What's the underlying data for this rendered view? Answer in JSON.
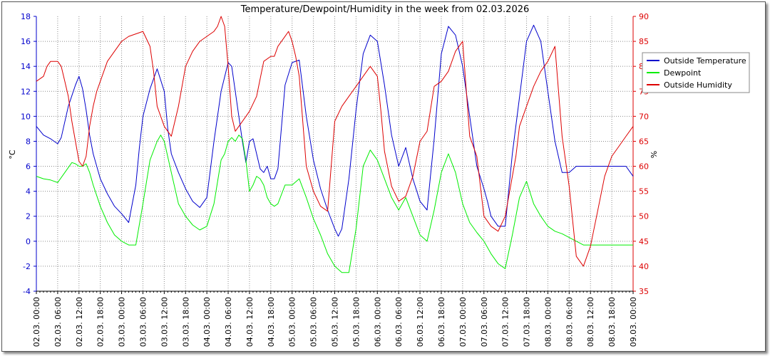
{
  "chart_data": {
    "type": "line",
    "title": "Temperature/Dewpoint/Humidity in the week from 02.03.2026",
    "ylabel_left": "°C",
    "ylabel_right": "%",
    "ylim_left": [
      -4,
      18
    ],
    "ylim_right": [
      35,
      90
    ],
    "yticks_left": [
      "-4",
      "-2",
      "0",
      "2",
      "4",
      "6",
      "8",
      "10",
      "12",
      "14",
      "16",
      "18"
    ],
    "yticks_right": [
      "35",
      "40",
      "45",
      "50",
      "55",
      "60",
      "65",
      "70",
      "75",
      "80",
      "85",
      "90"
    ],
    "xticks": [
      "02.03. 00:00",
      "02.03. 06:00",
      "02.03. 12:00",
      "02.03. 18:00",
      "03.03. 00:00",
      "03.03. 06:00",
      "03.03. 12:00",
      "03.03. 18:00",
      "04.03. 00:00",
      "04.03. 06:00",
      "04.03. 12:00",
      "04.03. 18:00",
      "05.03. 00:00",
      "05.03. 06:00",
      "05.03. 12:00",
      "05.03. 18:00",
      "06.03. 00:00",
      "06.03. 06:00",
      "06.03. 12:00",
      "06.03. 18:00",
      "07.03. 00:00",
      "07.03. 06:00",
      "07.03. 12:00",
      "07.03. 18:00",
      "08.03. 00:00",
      "08.03. 06:00",
      "08.03. 12:00",
      "08.03. 18:00",
      "09.03. 00:00"
    ],
    "x_hours_range": [
      0,
      168
    ],
    "legend_position": "top-right",
    "grid": true,
    "series": [
      {
        "name": "Outside Temperature",
        "color": "#0000cc",
        "axis": "left",
        "x": [
          0,
          2,
          4,
          6,
          7,
          9,
          11,
          12,
          13,
          14,
          15,
          16,
          18,
          20,
          22,
          24,
          26,
          28,
          29,
          30,
          32,
          34,
          36,
          37,
          38,
          40,
          42,
          44,
          46,
          48,
          50,
          52,
          54,
          55,
          56,
          57,
          58,
          59,
          60,
          61,
          62,
          63,
          64,
          65,
          66,
          67,
          68,
          70,
          72,
          74,
          76,
          78,
          80,
          82,
          84,
          85,
          86,
          88,
          90,
          92,
          94,
          96,
          98,
          100,
          102,
          104,
          106,
          108,
          110,
          112,
          114,
          116,
          118,
          120,
          122,
          124,
          126,
          127,
          128,
          130,
          132,
          134,
          136,
          138,
          140,
          142,
          144,
          146,
          148,
          150,
          152,
          154,
          156,
          158,
          160,
          162,
          164,
          166,
          168
        ],
        "y": [
          9.2,
          8.5,
          8.2,
          7.8,
          8.3,
          10.8,
          12.5,
          13.2,
          12.2,
          10.5,
          8.5,
          7,
          5,
          3.8,
          2.8,
          2.2,
          1.5,
          4.5,
          7.5,
          10,
          12.2,
          13.8,
          12,
          9,
          7,
          5.5,
          4.2,
          3.2,
          2.7,
          3.5,
          8,
          12,
          14.3,
          14,
          12,
          10,
          8,
          6.3,
          8,
          8.2,
          7,
          5.8,
          5.5,
          6,
          5,
          5,
          5.8,
          12.5,
          14.3,
          14.5,
          10,
          6.5,
          4.2,
          2.5,
          1,
          0.4,
          1,
          5,
          10.5,
          15,
          16.5,
          16,
          12.5,
          8.5,
          6,
          7.5,
          5,
          3.2,
          2.5,
          8.2,
          15,
          17.2,
          16.5,
          14,
          10,
          6,
          4.2,
          3.2,
          2,
          1.2,
          1.2,
          7,
          11.5,
          16,
          17.3,
          16,
          12,
          8,
          5.5,
          5.5,
          6,
          6,
          6,
          6,
          6,
          6,
          6,
          6,
          5.2
        ]
      },
      {
        "name": "Dewpoint",
        "color": "#00ee00",
        "axis": "left",
        "x": [
          0,
          2,
          4,
          6,
          8,
          10,
          11,
          12,
          13,
          14,
          15,
          16,
          18,
          20,
          22,
          24,
          26,
          28,
          30,
          32,
          34,
          35,
          36,
          38,
          40,
          42,
          44,
          46,
          48,
          50,
          52,
          53,
          54,
          55,
          56,
          57,
          58,
          59,
          60,
          61,
          62,
          63,
          64,
          65,
          66,
          67,
          68,
          70,
          72,
          74,
          76,
          78,
          80,
          82,
          84,
          86,
          88,
          90,
          92,
          94,
          96,
          98,
          100,
          102,
          104,
          106,
          108,
          110,
          112,
          114,
          116,
          118,
          120,
          122,
          124,
          126,
          128,
          130,
          132,
          134,
          136,
          138,
          140,
          142,
          144,
          146,
          148,
          150,
          152,
          154,
          156,
          158,
          160,
          162,
          164,
          166,
          168
        ],
        "y": [
          5.2,
          5,
          4.9,
          4.7,
          5.5,
          6.3,
          6.2,
          6,
          6,
          6.2,
          5.5,
          4.5,
          2.8,
          1.5,
          0.5,
          0,
          -0.3,
          -0.3,
          3,
          6.5,
          8,
          8.5,
          8,
          5.5,
          3,
          2,
          1.3,
          0.9,
          1.2,
          3,
          6.5,
          7,
          8,
          8.3,
          8,
          8.5,
          8.2,
          6.5,
          4,
          4.5,
          5.2,
          5,
          4.5,
          3.5,
          3,
          2.8,
          3,
          4.5,
          4.5,
          5,
          3.5,
          1.8,
          0.5,
          -1,
          -2,
          -2.5,
          -2.5,
          1,
          6,
          7.3,
          6.5,
          5,
          3.5,
          2.5,
          3.5,
          2,
          0.5,
          0,
          2.5,
          5.5,
          7,
          5.5,
          3,
          1.5,
          0.7,
          0,
          -1,
          -1.8,
          -2.2,
          0.5,
          3.5,
          4.8,
          3,
          2,
          1.2,
          0.8,
          0.6,
          0.3,
          0,
          -0.3,
          -0.3,
          -0.3,
          -0.3,
          -0.3,
          -0.3,
          -0.3,
          -0.3
        ]
      },
      {
        "name": "Outside Humidity",
        "color": "#dd0000",
        "axis": "right",
        "x": [
          0,
          2,
          3,
          4,
          6,
          7,
          8,
          9,
          10,
          12,
          13,
          14,
          15,
          16,
          17,
          18,
          20,
          22,
          24,
          26,
          28,
          30,
          32,
          33,
          34,
          36,
          38,
          40,
          42,
          44,
          46,
          48,
          50,
          51,
          52,
          53,
          54,
          55,
          56,
          58,
          60,
          62,
          64,
          66,
          67,
          68,
          70,
          71,
          72,
          73,
          74,
          76,
          78,
          80,
          82,
          84,
          86,
          88,
          90,
          92,
          94,
          96,
          97,
          98,
          100,
          102,
          104,
          106,
          108,
          110,
          112,
          114,
          116,
          118,
          120,
          122,
          124,
          126,
          128,
          130,
          132,
          134,
          135,
          136,
          138,
          140,
          142,
          144,
          146,
          148,
          150,
          152,
          154,
          156,
          158,
          160,
          162,
          164,
          166,
          168
        ],
        "y": [
          77,
          78,
          80,
          81,
          81,
          80,
          77,
          74,
          69,
          61,
          60,
          62,
          68,
          72,
          75,
          77,
          81,
          83,
          85,
          86,
          86.5,
          87,
          84,
          79,
          72,
          68,
          66,
          72,
          80,
          83,
          85,
          86,
          87,
          88,
          90,
          88,
          80,
          70,
          67,
          69,
          71,
          74,
          81,
          82,
          82,
          84,
          86,
          87,
          85,
          82,
          78,
          60,
          55,
          52,
          51,
          69,
          72,
          74,
          76,
          78,
          80,
          78,
          71,
          63,
          56,
          53,
          54,
          58,
          65,
          67,
          76,
          77,
          79,
          83,
          85,
          66,
          62,
          50,
          48,
          47,
          50,
          58,
          62,
          68,
          72,
          76,
          79,
          81,
          84,
          66,
          56,
          42,
          40,
          44,
          51,
          58,
          62,
          64,
          66,
          68
        ]
      }
    ]
  }
}
